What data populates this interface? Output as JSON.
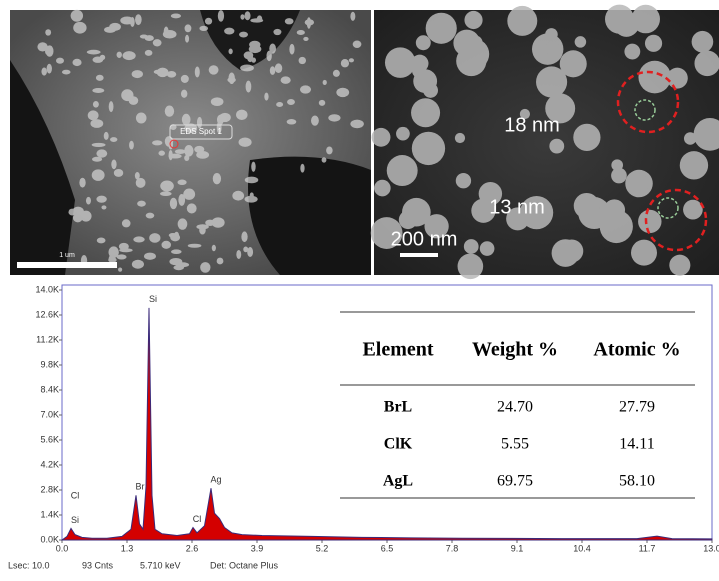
{
  "images": {
    "left": {
      "spot_label": "EDS Spot 1",
      "scale_label": "1 um"
    },
    "right": {
      "size_labels": [
        "18 nm",
        "13 nm"
      ],
      "scale_label": "200 nm"
    }
  },
  "chart_data": {
    "type": "area",
    "color": "#d40000",
    "outline": "#3a2a7a",
    "x": [
      0.0,
      0.1,
      0.18,
      0.26,
      0.4,
      0.6,
      0.9,
      1.2,
      1.38,
      1.48,
      1.55,
      1.62,
      1.68,
      1.74,
      1.8,
      1.86,
      2.0,
      2.3,
      2.55,
      2.62,
      2.7,
      2.85,
      2.98,
      3.05,
      3.15,
      3.25,
      3.4,
      3.6,
      4.0,
      5.0,
      6.0,
      7.0,
      8.0,
      9.0,
      10.0,
      11.5,
      11.9,
      12.2,
      13.0
    ],
    "values": [
      0,
      200,
      650,
      300,
      150,
      100,
      100,
      200,
      600,
      2500,
      900,
      600,
      3000,
      13000,
      2500,
      600,
      350,
      250,
      350,
      700,
      400,
      800,
      2900,
      1500,
      1200,
      700,
      400,
      300,
      250,
      200,
      150,
      120,
      100,
      90,
      80,
      80,
      220,
      80,
      60
    ],
    "xlim": [
      0,
      13
    ],
    "ylim": [
      0,
      14000
    ],
    "xticks": [
      {
        "value": 0,
        "label": "0.0"
      },
      1.3,
      2.6,
      3.9,
      5.2,
      6.5,
      7.8,
      9.1,
      10.4,
      11.7,
      {
        "value": 13,
        "label": "13.0"
      }
    ],
    "yticks": [
      {
        "value": 0,
        "label": "0.0K"
      },
      {
        "value": 1400,
        "label": "1.4K"
      },
      {
        "value": 2800,
        "label": "2.8K"
      },
      {
        "value": 4200,
        "label": "4.2K"
      },
      {
        "value": 5600,
        "label": "5.6K"
      },
      {
        "value": 7000,
        "label": "7.0K"
      },
      {
        "value": 8400,
        "label": "8.4K"
      },
      {
        "value": 9800,
        "label": "9.8K"
      },
      {
        "value": 11200,
        "label": "11.2K"
      },
      {
        "value": 12600,
        "label": "12.6K"
      },
      {
        "value": 14000,
        "label": "14.0K"
      }
    ],
    "annotations": [
      {
        "text": "Si",
        "x": 1.74,
        "y": 13000
      },
      {
        "text": "Br",
        "x": 1.48,
        "y": 2500
      },
      {
        "text": "Cl",
        "x": 2.62,
        "y": 700
      },
      {
        "text": "Ag",
        "x": 3.0,
        "y": 2900
      },
      {
        "text": "Cl",
        "x": 0.18,
        "y": 2000
      },
      {
        "text": "Si",
        "x": 0.18,
        "y": 650
      }
    ]
  },
  "table": {
    "header": [
      "Element",
      "Weight %",
      "Atomic %"
    ],
    "rows": [
      [
        "BrL",
        "24.70",
        "27.79"
      ],
      [
        "ClK",
        "5.55",
        "14.11"
      ],
      [
        "AgL",
        "69.75",
        "58.10"
      ]
    ]
  },
  "footer": [
    "Lsec: 10.0",
    "93 Cnts",
    "5.710 keV",
    "Det: Octane Plus"
  ]
}
